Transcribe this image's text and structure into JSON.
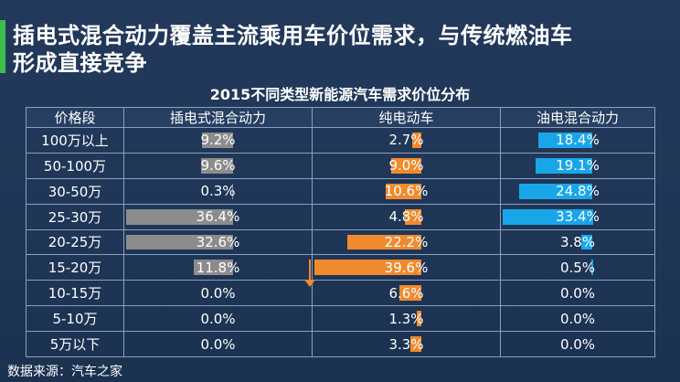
{
  "header": {
    "line1": "插电式混合动力覆盖主流乘用车价位需求，与传统燃油车",
    "line2": "形成直接竞争"
  },
  "chart_data": {
    "type": "table",
    "title": "2015不同类型新能源汽车需求价位分布",
    "columns": [
      "价格段",
      "插电式混合动力",
      "纯电动车",
      "油电混合动力"
    ],
    "series": [
      {
        "name": "插电式混合动力",
        "color": "#8c8c8c",
        "values": [
          9.2,
          9.6,
          0.3,
          36.4,
          32.6,
          11.8,
          0.0,
          0.0,
          0.0
        ]
      },
      {
        "name": "纯电动车",
        "color": "#ef8a2e",
        "values": [
          2.7,
          9.0,
          10.6,
          4.8,
          22.2,
          39.6,
          6.6,
          1.3,
          3.3
        ]
      },
      {
        "name": "油电混合动力",
        "color": "#19a6e8",
        "values": [
          18.4,
          19.1,
          24.8,
          33.4,
          3.8,
          0.5,
          0.0,
          0.0,
          0.0
        ]
      }
    ],
    "categories": [
      "100万以上",
      "50-100万",
      "30-50万",
      "25-30万",
      "20-25万",
      "15-20万",
      "10-15万",
      "5-10万",
      "5万以下"
    ],
    "display": [
      [
        "9.2%",
        "2.7%",
        "18.4%"
      ],
      [
        "9.6%",
        "9.0%",
        "19.1%"
      ],
      [
        "0.3%",
        "10.6%",
        "24.8%"
      ],
      [
        "36.4%",
        "4.8%",
        "33.4%"
      ],
      [
        "32.6%",
        "22.2%",
        "3.8%"
      ],
      [
        "11.8%",
        "39.6%",
        "0.5%"
      ],
      [
        "0.0%",
        "6.6%",
        "0.0%"
      ],
      [
        "0.0%",
        "1.3%",
        "0.0%"
      ],
      [
        "0.0%",
        "3.3%",
        "0.0%"
      ]
    ],
    "scale_max": 40
  },
  "footer": {
    "source": "数据来源：汽车之家"
  }
}
